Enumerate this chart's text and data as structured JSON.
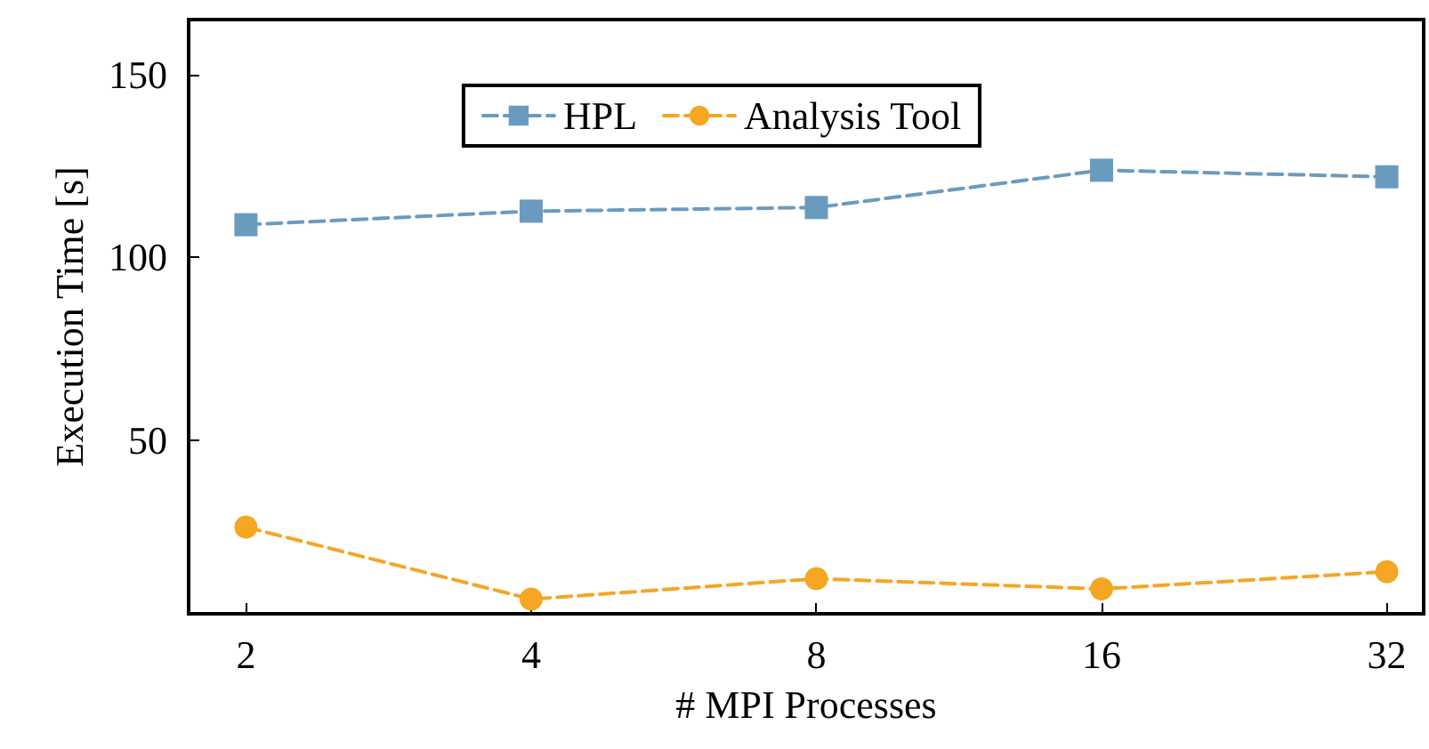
{
  "chart_data": {
    "type": "line",
    "xlabel": "# MPI Processes",
    "ylabel": "Execution Time [s]",
    "log": "x",
    "x": [
      2,
      4,
      8,
      16,
      32
    ],
    "xlim": [
      1.74,
      35
    ],
    "xticks": [
      2,
      4,
      8,
      16,
      32
    ],
    "ylim": [
      2.5,
      165
    ],
    "yticks": [
      50,
      100,
      150
    ],
    "grid": false,
    "legend": "top",
    "line_style": "dashed",
    "series": [
      {
        "name": "HPL",
        "color": "#6a9bbf",
        "marker": "square",
        "values": [
          108.9,
          112.6,
          113.6,
          123.8,
          122
        ]
      },
      {
        "name": "Analysis Tool",
        "color": "#f5a623",
        "marker": "circle",
        "values": [
          26.2,
          6.5,
          12.1,
          9.3,
          14
        ]
      }
    ]
  }
}
